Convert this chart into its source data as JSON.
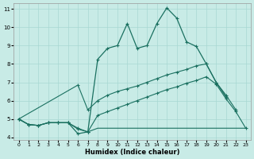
{
  "xlabel": "Humidex (Indice chaleur)",
  "bg_color": "#c8ebe6",
  "grid_color": "#a8d8d2",
  "line_color": "#1a7060",
  "xlim_min": -0.5,
  "xlim_max": 23.5,
  "ylim_min": 3.85,
  "ylim_max": 11.3,
  "xticks": [
    0,
    1,
    2,
    3,
    4,
    5,
    6,
    7,
    8,
    9,
    10,
    11,
    12,
    13,
    14,
    15,
    16,
    17,
    18,
    19,
    20,
    21,
    22,
    23
  ],
  "yticks": [
    4,
    5,
    6,
    7,
    8,
    9,
    10,
    11
  ],
  "curve_main_x": [
    0,
    1,
    2,
    3,
    4,
    5,
    6,
    7,
    8,
    9,
    10,
    11,
    12,
    13,
    14,
    15,
    16,
    17,
    18,
    19,
    20,
    21
  ],
  "curve_main_y": [
    5.0,
    4.7,
    4.65,
    4.8,
    4.8,
    4.8,
    4.2,
    4.3,
    8.25,
    8.85,
    9.0,
    10.2,
    8.85,
    9.0,
    10.2,
    11.05,
    10.5,
    9.2,
    8.95,
    8.0,
    7.0,
    6.2
  ],
  "curve_med_x": [
    0,
    6,
    7,
    8,
    9,
    10,
    11,
    12,
    13,
    14,
    15,
    16,
    17,
    18,
    19,
    20,
    21,
    22
  ],
  "curve_med_y": [
    5.0,
    6.85,
    5.5,
    6.0,
    6.3,
    6.5,
    6.65,
    6.8,
    7.0,
    7.2,
    7.4,
    7.55,
    7.7,
    7.9,
    8.0,
    7.0,
    6.3,
    5.5
  ],
  "curve_slow_x": [
    0,
    1,
    2,
    3,
    4,
    5,
    6,
    7,
    8,
    9,
    10,
    11,
    12,
    13,
    14,
    15,
    16,
    17,
    18,
    19,
    20,
    21,
    22,
    23
  ],
  "curve_slow_y": [
    5.0,
    4.7,
    4.65,
    4.8,
    4.8,
    4.8,
    4.5,
    4.3,
    5.2,
    5.4,
    5.6,
    5.8,
    6.0,
    6.2,
    6.4,
    6.6,
    6.75,
    6.95,
    7.1,
    7.3,
    6.9,
    6.1,
    5.4,
    4.5
  ],
  "curve_flat_x": [
    0,
    1,
    2,
    3,
    4,
    5,
    6,
    7,
    8,
    9,
    10,
    11,
    12,
    13,
    14,
    15,
    16,
    17,
    18,
    19,
    20,
    21,
    22,
    23
  ],
  "curve_flat_y": [
    5.0,
    4.7,
    4.65,
    4.8,
    4.8,
    4.8,
    4.45,
    4.3,
    4.5,
    4.5,
    4.5,
    4.5,
    4.5,
    4.5,
    4.5,
    4.5,
    4.5,
    4.5,
    4.5,
    4.5,
    4.5,
    4.5,
    4.5,
    4.5
  ]
}
